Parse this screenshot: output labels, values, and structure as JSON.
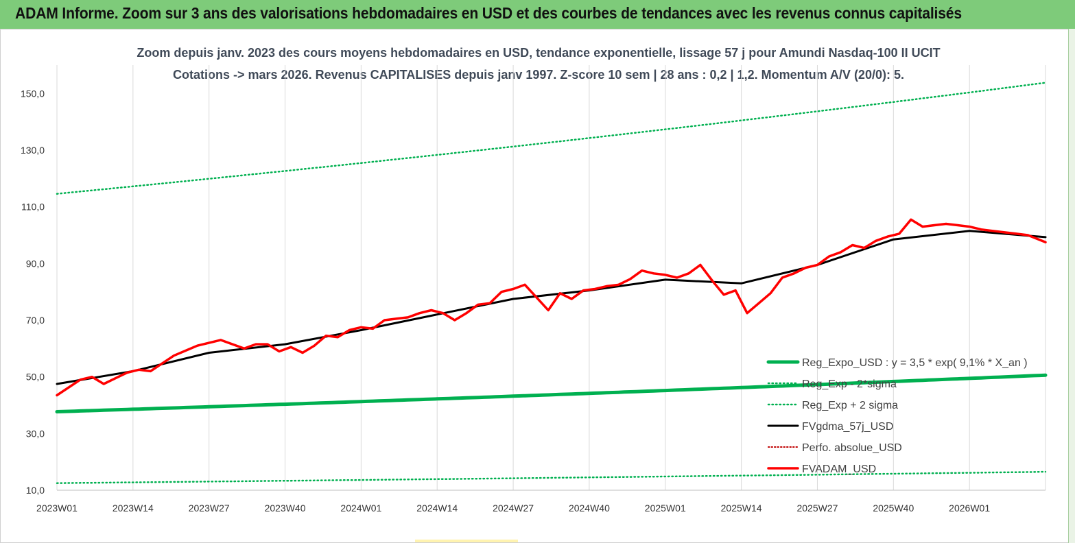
{
  "banner": {
    "title": "ADAM Informe. Zoom sur 3 ans des valorisations hebdomadaires en USD et des courbes de tendances avec les revenus connus capitalisés"
  },
  "chart_data": {
    "type": "line",
    "title": "Zoom depuis janv. 2023 des cours moyens hebdomadaires en USD, tendance exponentielle, lissage 57 j pour Amundi Nasdaq-100 II UCIT",
    "subtitle": "Cotations -> mars 2026. Revenus CAPITALISES depuis janv 1997. Z-score 10 sem | 28 ans : 0,2 | 1,2. Momentum A/V (20/0): 5.",
    "xlabel": "",
    "ylabel": "",
    "ylim": [
      10,
      160
    ],
    "yticks": [
      10,
      30,
      50,
      70,
      90,
      110,
      130,
      150
    ],
    "ytick_labels": [
      "10,0",
      "30,0",
      "50,0",
      "70,0",
      "90,0",
      "110,0",
      "130,0",
      "150,0"
    ],
    "xticks": [
      "2023W01",
      "2023W14",
      "2023W27",
      "2023W40",
      "2024W01",
      "2024W14",
      "2024W27",
      "2024W40",
      "2025W01",
      "2025W14",
      "2025W27",
      "2025W40",
      "2026W01"
    ],
    "xtick_step_weeks": 13,
    "n_weeks": 170,
    "grid": "vertical",
    "legend_position": "bottom-right",
    "colors": {
      "reg_expo": "#00b050",
      "sigma": "#00b050",
      "fvgdma": "#000000",
      "perfo": "#c00000",
      "fvadam": "#ff0000",
      "banner": "#7ecb7a",
      "title": "#404a58"
    },
    "series": [
      {
        "name": "Reg_Expo_USD : y = 3,5 * exp( 9,1% * X_an )",
        "style": "solid-thick",
        "x_weeks": [
          0,
          169
        ],
        "values": [
          37.7,
          50.6
        ]
      },
      {
        "name": "Reg_Exp - 2*sigma",
        "style": "dotted",
        "x_weeks": [
          0,
          169
        ],
        "values": [
          12.5,
          16.5
        ]
      },
      {
        "name": "Reg_Exp + 2 sigma",
        "style": "dotted",
        "x_weeks": [
          0,
          169
        ],
        "values": [
          114.6,
          153.8
        ]
      },
      {
        "name": "FVgdma_57j_USD",
        "style": "solid",
        "x_weeks": [
          0,
          13,
          26,
          39,
          52,
          65,
          78,
          91,
          104,
          117,
          130,
          143,
          156,
          169
        ],
        "values": [
          47.5,
          52.0,
          58.5,
          61.5,
          66.5,
          72.0,
          77.5,
          80.5,
          84.3,
          83.0,
          89.5,
          98.5,
          101.5,
          99.3
        ]
      },
      {
        "name": "Perfo. absolue_USD",
        "style": "dotted",
        "x_weeks": [],
        "values": []
      },
      {
        "name": "FVADAM_USD",
        "style": "solid-thick",
        "x_weeks": [
          0,
          4,
          6,
          8,
          10,
          12,
          14,
          16,
          20,
          24,
          28,
          32,
          34,
          36,
          38,
          40,
          42,
          44,
          46,
          48,
          50,
          52,
          54,
          56,
          58,
          60,
          62,
          64,
          66,
          68,
          70,
          72,
          74,
          76,
          78,
          80,
          82,
          84,
          86,
          88,
          90,
          92,
          94,
          96,
          98,
          100,
          102,
          104,
          106,
          108,
          110,
          112,
          114,
          116,
          118,
          120,
          122,
          124,
          126,
          128,
          130,
          132,
          134,
          136,
          138,
          140,
          142,
          144,
          146,
          148,
          150,
          152,
          154,
          156,
          158,
          160,
          162,
          164,
          166,
          169
        ],
        "values": [
          43.5,
          49.0,
          50.0,
          47.5,
          49.5,
          51.5,
          52.5,
          52.0,
          57.5,
          61.0,
          63.0,
          60.0,
          61.5,
          61.5,
          59.0,
          60.5,
          58.5,
          61.0,
          64.5,
          64.0,
          66.5,
          67.5,
          67.0,
          70.0,
          70.5,
          71.0,
          72.5,
          73.5,
          72.5,
          70.0,
          72.5,
          75.5,
          76.0,
          80.0,
          81.0,
          82.5,
          78.0,
          73.5,
          79.5,
          77.5,
          80.5,
          81.0,
          82.0,
          82.5,
          84.5,
          87.5,
          86.5,
          86.0,
          85.0,
          86.5,
          89.5,
          84.0,
          79.0,
          80.5,
          72.5,
          76.0,
          79.5,
          85.0,
          86.5,
          88.5,
          89.5,
          92.5,
          94.0,
          96.5,
          95.5,
          98.0,
          99.5,
          100.5,
          105.5,
          103.0,
          103.5,
          104.0,
          103.5,
          103.0,
          102.0,
          101.5,
          101.0,
          100.5,
          100.0,
          97.5
        ]
      }
    ]
  }
}
